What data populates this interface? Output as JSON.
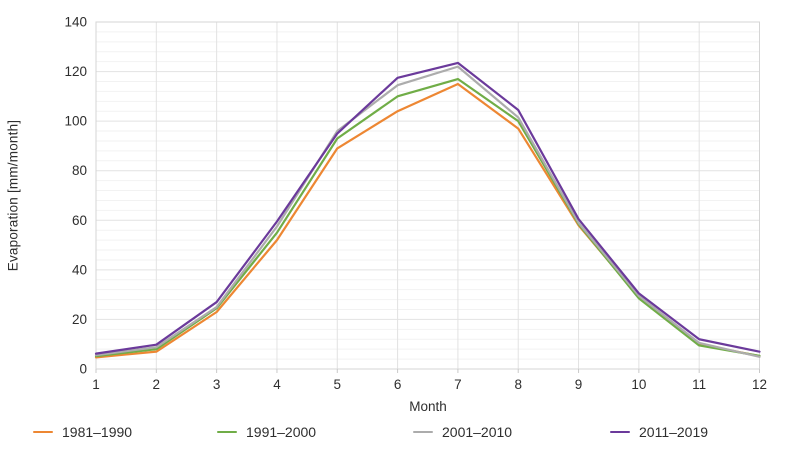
{
  "chart_data": {
    "type": "line",
    "title": "",
    "xlabel": "Month",
    "ylabel": "Evaporation [mm/month]",
    "x": [
      1,
      2,
      3,
      4,
      5,
      6,
      7,
      8,
      9,
      10,
      11,
      12
    ],
    "x_ticks": [
      "1",
      "2",
      "3",
      "4",
      "5",
      "6",
      "7",
      "8",
      "9",
      "10",
      "11",
      "12"
    ],
    "y_ticks": [
      "0",
      "20",
      "40",
      "60",
      "80",
      "100",
      "120",
      "140"
    ],
    "xlim": [
      1,
      12
    ],
    "ylim": [
      0,
      140
    ],
    "y_major_step": 20,
    "y_minor_step": 4,
    "grid": "horizontal major + minor lines, vertical line at each month",
    "legend_position": "bottom",
    "series": [
      {
        "name": "1981–1990",
        "color": "#ED8733",
        "values": [
          4.7,
          7,
          23,
          52,
          89,
          104,
          115,
          97,
          58,
          29,
          10,
          5.2
        ]
      },
      {
        "name": "1991–2000",
        "color": "#70AD47",
        "values": [
          5.2,
          8,
          24.5,
          55,
          93,
          110,
          117,
          100,
          58.5,
          28.5,
          9.5,
          5.3
        ]
      },
      {
        "name": "2001–2010",
        "color": "#ACACAC",
        "values": [
          5.6,
          8.8,
          25,
          57.5,
          96,
          114.5,
          122,
          101.5,
          59,
          29.5,
          10.5,
          4.9
        ]
      },
      {
        "name": "2011–2019",
        "color": "#6B3A9B",
        "values": [
          6.2,
          9.8,
          27,
          59.5,
          95,
          117.5,
          123.5,
          104.5,
          60.5,
          30.5,
          12,
          7
        ]
      }
    ],
    "legend_labels": [
      "1981–1990",
      "1991–2000",
      "2001–2010",
      "2011–2019"
    ]
  }
}
